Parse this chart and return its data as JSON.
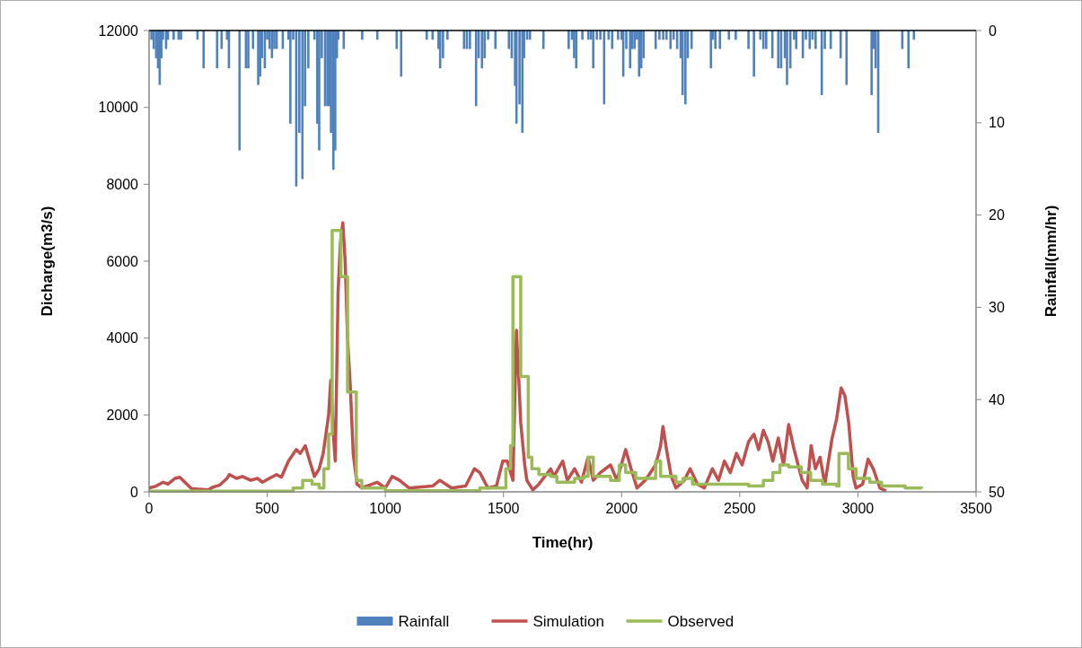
{
  "chart_data": {
    "type": "line",
    "xlabel": "Time(hr)",
    "ylabel": "Dicharge(m3/s)",
    "y2label": "Rainfall(mm/hr)",
    "xlim": [
      0,
      3500
    ],
    "xticks": [
      0,
      500,
      1000,
      1500,
      2000,
      2500,
      3000,
      3500
    ],
    "ylim": [
      0,
      12000
    ],
    "yticks": [
      0,
      2000,
      4000,
      6000,
      8000,
      10000,
      12000
    ],
    "y2lim": [
      50,
      0
    ],
    "y2ticks": [
      0,
      10,
      20,
      30,
      40,
      50
    ],
    "grid": false,
    "legend": "bottom",
    "line_style": "solid",
    "marker": "none",
    "series": [
      {
        "name": "Rainfall",
        "type": "bar",
        "axis": "y2",
        "color": "#4f81bd",
        "x": [
          10,
          20,
          30,
          38,
          45,
          52,
          59,
          72,
          80,
          104,
          125,
          135,
          205,
          231,
          288,
          307,
          330,
          338,
          383,
          410,
          420,
          440,
          462,
          470,
          478,
          490,
          500,
          510,
          520,
          530,
          540,
          566,
          590,
          598,
          610,
          623,
          636,
          649,
          660,
          674,
          700,
          712,
          720,
          731,
          745,
          755,
          763,
          770,
          780,
          788,
          795,
          801,
          824,
          902,
          966,
          1048,
          1067,
          1175,
          1200,
          1225,
          1232,
          1244,
          1263,
          1333,
          1345,
          1358,
          1384,
          1395,
          1409,
          1420,
          1435,
          1466,
          1523,
          1535,
          1549,
          1555,
          1568,
          1580,
          1587,
          1600,
          1612,
          1669,
          1776,
          1790,
          1799,
          1808,
          1834,
          1859,
          1870,
          1880,
          1895,
          1910,
          1926,
          1945,
          1960,
          1985,
          2000,
          2007,
          2020,
          2036,
          2045,
          2055,
          2065,
          2074,
          2083,
          2093,
          2144,
          2160,
          2176,
          2190,
          2207,
          2220,
          2235,
          2250,
          2258,
          2270,
          2280,
          2296,
          2378,
          2387,
          2397,
          2416,
          2454,
          2483,
          2537,
          2560,
          2587,
          2600,
          2612,
          2638,
          2663,
          2675,
          2691,
          2700,
          2714,
          2730,
          2739,
          2767,
          2780,
          2796,
          2808,
          2821,
          2847,
          2860,
          2885,
          2927,
          2952,
          3058,
          3066,
          3075,
          3086,
          3188,
          3214,
          3237
        ],
        "values": [
          1,
          2,
          3,
          4.1,
          5.9,
          3,
          1,
          2,
          1,
          1,
          1,
          1,
          1,
          4.1,
          4.1,
          2,
          1,
          4.1,
          13,
          4.1,
          4.1,
          2,
          5.9,
          5,
          3,
          4.1,
          1,
          2,
          3,
          2,
          2,
          2,
          1,
          10.1,
          1,
          16.9,
          11.1,
          16.1,
          8.2,
          4.1,
          1,
          10.1,
          13,
          3,
          8.2,
          8.2,
          8.2,
          11.1,
          15.1,
          13,
          3,
          1,
          2,
          1,
          1,
          2,
          5,
          1,
          1,
          2,
          4.1,
          3,
          1,
          2,
          2,
          2,
          8.2,
          3,
          4.1,
          3,
          1,
          2,
          2,
          3,
          6,
          10.1,
          8,
          11.1,
          3,
          1,
          1,
          2,
          2,
          1,
          3,
          4.1,
          1,
          1,
          1,
          4.1,
          1,
          1,
          8,
          1,
          2,
          1,
          1,
          5,
          2,
          4.1,
          2,
          2,
          1,
          5,
          4.1,
          3,
          2,
          1,
          1,
          1,
          2,
          1,
          2,
          3,
          7,
          8,
          3,
          2,
          4.1,
          1,
          2,
          2,
          1,
          1,
          2,
          5,
          1,
          2,
          2,
          3,
          4.1,
          4.1,
          3,
          5.9,
          4.1,
          1,
          2,
          3,
          1,
          2,
          1,
          2,
          7,
          2,
          2,
          3,
          5.9,
          7,
          2,
          4.1,
          11.1,
          2,
          4.1,
          1
        ]
      },
      {
        "name": "Simulation",
        "color": "#c0504d",
        "x": [
          0,
          30,
          60,
          80,
          110,
          130,
          160,
          180,
          250,
          270,
          300,
          330,
          340,
          370,
          395,
          430,
          459,
          480,
          509,
          540,
          560,
          590,
          623,
          640,
          661,
          680,
          700,
          720,
          737,
          760,
          769,
          780,
          788,
          800,
          810,
          820,
          830,
          840,
          852,
          864,
          880,
          900,
          965,
          1000,
          1029,
          1060,
          1100,
          1200,
          1231,
          1280,
          1340,
          1377,
          1400,
          1434,
          1470,
          1497,
          1516,
          1540,
          1548,
          1555,
          1565,
          1573,
          1590,
          1599,
          1624,
          1650,
          1700,
          1713,
          1751,
          1770,
          1801,
          1830,
          1858,
          1880,
          1910,
          1953,
          1980,
          2017,
          2040,
          2065,
          2100,
          2144,
          2165,
          2175,
          2190,
          2210,
          2230,
          2265,
          2290,
          2321,
          2350,
          2384,
          2410,
          2435,
          2460,
          2486,
          2510,
          2537,
          2560,
          2580,
          2600,
          2620,
          2640,
          2663,
          2685,
          2707,
          2730,
          2764,
          2785,
          2802,
          2820,
          2840,
          2860,
          2891,
          2910,
          2929,
          2945,
          2961,
          2980,
          2992,
          3020,
          3043,
          3065,
          3093,
          3119
        ],
        "values": [
          100,
          150,
          250,
          200,
          350,
          380,
          200,
          80,
          50,
          120,
          180,
          350,
          450,
          350,
          400,
          300,
          350,
          250,
          350,
          450,
          380,
          800,
          1100,
          1000,
          1200,
          800,
          400,
          600,
          1000,
          2000,
          2900,
          1500,
          800,
          5200,
          6500,
          7000,
          6000,
          4000,
          2700,
          1000,
          200,
          100,
          250,
          100,
          400,
          300,
          100,
          150,
          300,
          100,
          150,
          600,
          500,
          100,
          150,
          800,
          800,
          300,
          2500,
          4200,
          2900,
          1800,
          700,
          300,
          50,
          200,
          600,
          400,
          800,
          300,
          600,
          250,
          900,
          300,
          500,
          700,
          300,
          1100,
          600,
          100,
          300,
          700,
          1200,
          1700,
          1100,
          400,
          100,
          300,
          600,
          200,
          100,
          600,
          300,
          800,
          500,
          1000,
          700,
          1300,
          1500,
          1100,
          1600,
          1300,
          800,
          1400,
          700,
          1750,
          1100,
          300,
          100,
          1200,
          600,
          900,
          200,
          1400,
          1900,
          2700,
          2500,
          1800,
          400,
          100,
          200,
          850,
          600,
          100,
          20
        ]
      },
      {
        "name": "Observed",
        "type": "step",
        "color": "#9bbb59",
        "x": [
          0,
          600,
          610,
          650,
          690,
          720,
          740,
          760,
          775,
          812,
          840,
          877,
          900,
          1000,
          1300,
          1400,
          1500,
          1510,
          1530,
          1540,
          1573,
          1605,
          1620,
          1650,
          1700,
          1726,
          1801,
          1840,
          1858,
          1880,
          1953,
          1990,
          2017,
          2060,
          2144,
          2165,
          2230,
          2260,
          2300,
          2400,
          2537,
          2600,
          2640,
          2670,
          2707,
          2760,
          2800,
          2850,
          2910,
          2920,
          2940,
          2960,
          2992,
          3050,
          3100,
          3200,
          3270
        ],
        "values": [
          20,
          20,
          100,
          300,
          200,
          100,
          600,
          1500,
          6800,
          5600,
          2600,
          300,
          100,
          30,
          30,
          100,
          100,
          600,
          1200,
          5600,
          3000,
          900,
          600,
          450,
          400,
          250,
          350,
          400,
          900,
          400,
          300,
          700,
          500,
          350,
          800,
          400,
          250,
          350,
          200,
          200,
          150,
          300,
          500,
          700,
          650,
          500,
          300,
          200,
          150,
          1000,
          1000,
          600,
          350,
          250,
          150,
          100,
          80
        ]
      }
    ]
  }
}
